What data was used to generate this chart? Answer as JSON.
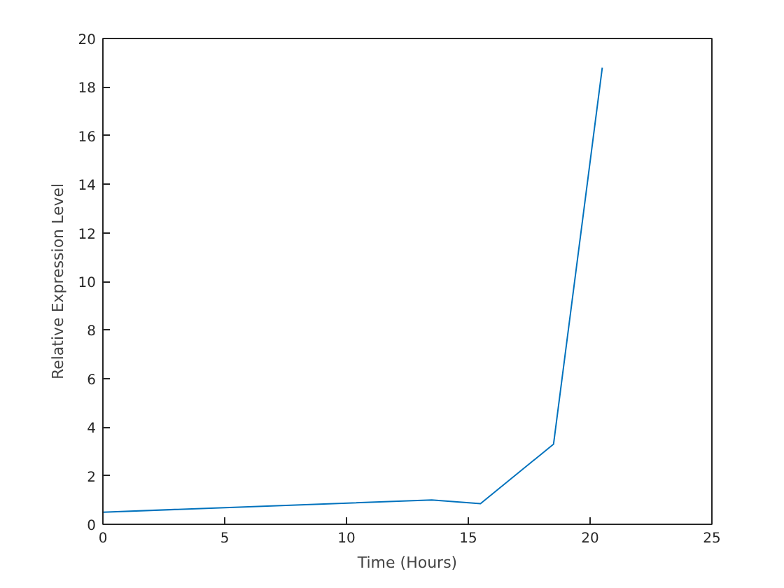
{
  "chart_data": {
    "type": "line",
    "xlabel": "Time (Hours)",
    "ylabel": "Relative Expression Level",
    "x": [
      0,
      13.5,
      15.5,
      18.5,
      20.5
    ],
    "series": [
      {
        "color": "#0072bd",
        "values": [
          0.5,
          1.0,
          0.85,
          3.3,
          18.8
        ]
      }
    ],
    "xlim": [
      0,
      25
    ],
    "ylim": [
      0,
      20
    ],
    "xticks": [
      0,
      5,
      10,
      15,
      20,
      25
    ],
    "yticks": [
      0,
      2,
      4,
      6,
      8,
      10,
      12,
      14,
      16,
      18,
      20
    ],
    "grid": false
  }
}
